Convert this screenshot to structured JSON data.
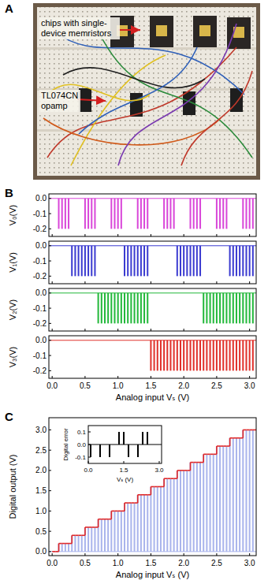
{
  "photo": {
    "title": "A",
    "labels": [
      "chips with single-device memristors",
      "TL074CN opamp"
    ]
  },
  "chart_data": [
    {
      "type": "bar",
      "title": "B",
      "ylabel": "V₀(V)",
      "color": "#d946d9",
      "x": [
        0,
        0.05,
        0.1,
        0.15,
        0.2,
        0.25,
        0.3,
        0.35,
        0.4,
        0.45,
        0.5,
        0.55,
        0.6,
        0.65,
        0.7,
        0.75,
        0.8,
        0.85,
        0.9,
        0.95,
        1,
        1.05,
        1.1,
        1.15,
        1.2,
        1.25,
        1.3,
        1.35,
        1.4,
        1.45,
        1.5,
        1.55,
        1.6,
        1.65,
        1.7,
        1.75,
        1.8,
        1.85,
        1.9,
        1.95,
        2,
        2.05,
        2.1,
        2.15,
        2.2,
        2.25,
        2.3,
        2.35,
        2.4,
        2.45,
        2.5,
        2.55,
        2.6,
        2.65,
        2.7,
        2.75,
        2.8,
        2.85,
        2.9,
        2.95,
        3,
        3.05
      ],
      "values": [
        0,
        0,
        -0.2,
        -0.2,
        -0.2,
        -0.2,
        0,
        0,
        0,
        0,
        -0.2,
        -0.2,
        -0.2,
        -0.2,
        0,
        0,
        0,
        0,
        -0.2,
        -0.2,
        -0.2,
        -0.2,
        0,
        0,
        0,
        0,
        -0.2,
        -0.2,
        -0.2,
        -0.2,
        0,
        0,
        0,
        0,
        -0.2,
        -0.2,
        -0.2,
        -0.2,
        0,
        0,
        0,
        0,
        -0.2,
        -0.2,
        -0.2,
        -0.2,
        0,
        0,
        0,
        0,
        -0.2,
        -0.2,
        -0.2,
        -0.2,
        0,
        0,
        0,
        0,
        -0.2,
        -0.2,
        -0.2,
        -0.2
      ],
      "xlim": [
        -0.05,
        3.1
      ],
      "ylim": [
        -0.25,
        0.03
      ],
      "xticks": [
        0,
        0.5,
        1,
        1.5,
        2,
        2.5,
        3
      ],
      "yticks": [
        {
          "value": 0,
          "label": "0.0"
        },
        -0.1,
        -0.2
      ],
      "tick_labels": "y"
    },
    {
      "type": "bar",
      "ylabel": "V₁(V)",
      "color": "#3a3ad0",
      "x": [
        0,
        0.05,
        0.1,
        0.15,
        0.2,
        0.25,
        0.3,
        0.35,
        0.4,
        0.45,
        0.5,
        0.55,
        0.6,
        0.65,
        0.7,
        0.75,
        0.8,
        0.85,
        0.9,
        0.95,
        1,
        1.05,
        1.1,
        1.15,
        1.2,
        1.25,
        1.3,
        1.35,
        1.4,
        1.45,
        1.5,
        1.55,
        1.6,
        1.65,
        1.7,
        1.75,
        1.8,
        1.85,
        1.9,
        1.95,
        2,
        2.05,
        2.1,
        2.15,
        2.2,
        2.25,
        2.3,
        2.35,
        2.4,
        2.45,
        2.5,
        2.55,
        2.6,
        2.65,
        2.7,
        2.75,
        2.8,
        2.85,
        2.9,
        2.95,
        3,
        3.05
      ],
      "values": [
        0,
        0,
        0,
        0,
        0,
        0,
        -0.2,
        -0.2,
        -0.2,
        -0.2,
        -0.2,
        -0.2,
        -0.2,
        -0.2,
        0,
        0,
        0,
        0,
        0,
        0,
        0,
        0,
        -0.2,
        -0.2,
        -0.2,
        -0.2,
        -0.2,
        -0.2,
        -0.2,
        -0.2,
        0,
        0,
        0,
        0,
        0,
        0,
        0,
        0,
        -0.2,
        -0.2,
        -0.2,
        -0.2,
        -0.2,
        -0.2,
        -0.2,
        -0.2,
        0,
        0,
        0,
        0,
        0,
        0,
        0,
        0,
        -0.2,
        -0.2,
        -0.2,
        -0.2,
        -0.2,
        -0.2,
        -0.2,
        -0.2
      ],
      "xlim": [
        -0.05,
        3.1
      ],
      "ylim": [
        -0.25,
        0.03
      ],
      "xticks": [
        0,
        0.5,
        1,
        1.5,
        2,
        2.5,
        3
      ],
      "yticks": [
        {
          "value": 0,
          "label": "0.0"
        },
        -0.1,
        -0.2
      ],
      "tick_labels": "y"
    },
    {
      "type": "bar",
      "ylabel": "V₂(V)",
      "color": "#22b83a",
      "x": [
        0,
        0.05,
        0.1,
        0.15,
        0.2,
        0.25,
        0.3,
        0.35,
        0.4,
        0.45,
        0.5,
        0.55,
        0.6,
        0.65,
        0.7,
        0.75,
        0.8,
        0.85,
        0.9,
        0.95,
        1,
        1.05,
        1.1,
        1.15,
        1.2,
        1.25,
        1.3,
        1.35,
        1.4,
        1.45,
        1.5,
        1.55,
        1.6,
        1.65,
        1.7,
        1.75,
        1.8,
        1.85,
        1.9,
        1.95,
        2,
        2.05,
        2.1,
        2.15,
        2.2,
        2.25,
        2.3,
        2.35,
        2.4,
        2.45,
        2.5,
        2.55,
        2.6,
        2.65,
        2.7,
        2.75,
        2.8,
        2.85,
        2.9,
        2.95,
        3,
        3.05
      ],
      "values": [
        0,
        0,
        0,
        0,
        0,
        0,
        0,
        0,
        0,
        0,
        0,
        0,
        0,
        0,
        -0.2,
        -0.2,
        -0.2,
        -0.2,
        -0.2,
        -0.2,
        -0.2,
        -0.2,
        -0.2,
        -0.2,
        -0.2,
        -0.2,
        -0.2,
        -0.2,
        -0.2,
        -0.2,
        0,
        0,
        0,
        0,
        0,
        0,
        0,
        0,
        0,
        0,
        0,
        0,
        0,
        0,
        0,
        0,
        -0.2,
        -0.2,
        -0.2,
        -0.2,
        -0.2,
        -0.2,
        -0.2,
        -0.2,
        -0.2,
        -0.2,
        -0.2,
        -0.2,
        -0.2,
        -0.2,
        -0.2,
        -0.2
      ],
      "xlim": [
        -0.05,
        3.1
      ],
      "ylim": [
        -0.25,
        0.03
      ],
      "xticks": [
        0,
        0.5,
        1,
        1.5,
        2,
        2.5,
        3
      ],
      "yticks": [
        {
          "value": 0,
          "label": "0.0"
        },
        -0.1,
        -0.2
      ],
      "tick_labels": "y"
    },
    {
      "type": "bar",
      "ylabel": "V₃(V)",
      "xlabel": "Analog input Vₛ (V)",
      "color": "#e0302a",
      "x": [
        0,
        0.05,
        0.1,
        0.15,
        0.2,
        0.25,
        0.3,
        0.35,
        0.4,
        0.45,
        0.5,
        0.55,
        0.6,
        0.65,
        0.7,
        0.75,
        0.8,
        0.85,
        0.9,
        0.95,
        1,
        1.05,
        1.1,
        1.15,
        1.2,
        1.25,
        1.3,
        1.35,
        1.4,
        1.45,
        1.5,
        1.55,
        1.6,
        1.65,
        1.7,
        1.75,
        1.8,
        1.85,
        1.9,
        1.95,
        2,
        2.05,
        2.1,
        2.15,
        2.2,
        2.25,
        2.3,
        2.35,
        2.4,
        2.45,
        2.5,
        2.55,
        2.6,
        2.65,
        2.7,
        2.75,
        2.8,
        2.85,
        2.9,
        2.95,
        3,
        3.05
      ],
      "values": [
        0,
        0,
        0,
        0,
        0,
        0,
        0,
        0,
        0,
        0,
        0,
        0,
        0,
        0,
        0,
        0,
        0,
        0,
        0,
        0,
        0,
        0,
        0,
        0,
        0,
        0,
        0,
        0,
        0,
        0,
        -0.2,
        -0.2,
        -0.2,
        -0.2,
        -0.2,
        -0.2,
        -0.2,
        -0.2,
        -0.2,
        -0.2,
        -0.2,
        -0.2,
        -0.2,
        -0.2,
        -0.2,
        -0.2,
        -0.2,
        -0.2,
        -0.2,
        -0.2,
        -0.2,
        -0.2,
        -0.2,
        -0.2,
        -0.2,
        -0.2,
        -0.2,
        -0.2,
        -0.2,
        -0.2,
        -0.2,
        -0.2
      ],
      "xlim": [
        -0.05,
        3.1
      ],
      "ylim": [
        -0.25,
        0.03
      ],
      "xticks": [
        {
          "value": 0,
          "label": "0.0"
        },
        0.5,
        {
          "value": 1,
          "label": "1.0"
        },
        1.5,
        {
          "value": 2,
          "label": "2.0"
        },
        2.5,
        {
          "value": 3,
          "label": "3.0"
        }
      ],
      "yticks": [
        {
          "value": 0,
          "label": "0.0"
        },
        -0.1,
        -0.2
      ]
    },
    {
      "type": "bar",
      "title": "C",
      "xlabel": "Analog input Vₛ (V)",
      "ylabel": "Digital output (V)",
      "x": [
        0,
        0.05,
        0.1,
        0.15,
        0.2,
        0.25,
        0.3,
        0.35,
        0.4,
        0.45,
        0.5,
        0.55,
        0.6,
        0.65,
        0.7,
        0.75,
        0.8,
        0.85,
        0.9,
        0.95,
        1,
        1.05,
        1.1,
        1.15,
        1.2,
        1.25,
        1.3,
        1.35,
        1.4,
        1.45,
        1.5,
        1.55,
        1.6,
        1.65,
        1.7,
        1.75,
        1.8,
        1.85,
        1.9,
        1.95,
        2,
        2.05,
        2.1,
        2.15,
        2.2,
        2.25,
        2.3,
        2.35,
        2.4,
        2.45,
        2.5,
        2.55,
        2.6,
        2.65,
        2.7,
        2.75,
        2.8,
        2.85,
        2.9,
        2.95,
        3,
        3.05
      ],
      "series": [
        {
          "type": "bar",
          "color": "#a9b4ec",
          "values": [
            0,
            0,
            0.2,
            0.2,
            0.2,
            0.2,
            0.4,
            0.4,
            0.4,
            0.4,
            0.6,
            0.6,
            0.6,
            0.6,
            0.8,
            0.8,
            0.8,
            0.8,
            1,
            1,
            1,
            1,
            1.2,
            1.2,
            1.2,
            1.2,
            1.4,
            1.4,
            1.4,
            1.4,
            1.6,
            1.6,
            1.6,
            1.6,
            1.8,
            1.8,
            1.8,
            1.8,
            2,
            2,
            2,
            2,
            2.2,
            2.2,
            2.2,
            2.2,
            2.4,
            2.4,
            2.4,
            2.4,
            2.6,
            2.6,
            2.6,
            2.6,
            2.8,
            2.8,
            2.8,
            2.8,
            3,
            3,
            3,
            3
          ]
        },
        {
          "type": "step",
          "color": "#e02828",
          "values": [
            0,
            0,
            0.2,
            0.2,
            0.2,
            0.2,
            0.4,
            0.4,
            0.4,
            0.4,
            0.6,
            0.6,
            0.6,
            0.6,
            0.8,
            0.8,
            0.8,
            0.8,
            1,
            1,
            1,
            1,
            1.2,
            1.2,
            1.2,
            1.2,
            1.4,
            1.4,
            1.4,
            1.4,
            1.6,
            1.6,
            1.6,
            1.6,
            1.8,
            1.8,
            1.8,
            1.8,
            2,
            2,
            2,
            2,
            2.2,
            2.2,
            2.2,
            2.2,
            2.4,
            2.4,
            2.4,
            2.4,
            2.6,
            2.6,
            2.6,
            2.6,
            2.8,
            2.8,
            2.8,
            2.8,
            3,
            3,
            3,
            3
          ]
        }
      ],
      "xlim": [
        -0.05,
        3.1
      ],
      "ylim": [
        -0.1,
        3.3
      ],
      "xticks": [
        {
          "value": 0,
          "label": "0.0"
        },
        0.5,
        {
          "value": 1,
          "label": "1.0"
        },
        1.5,
        {
          "value": 2,
          "label": "2.0"
        },
        2.5,
        {
          "value": 3,
          "label": "3.0"
        }
      ],
      "yticks": [
        {
          "value": 0,
          "label": "0.0"
        },
        0.5,
        {
          "value": 1,
          "label": "1.0"
        },
        1.5,
        {
          "value": 2,
          "label": "2.0"
        },
        2.5,
        {
          "value": 3,
          "label": "3.0"
        }
      ]
    },
    {
      "type": "bar",
      "xlabel": "Vₛ (V)",
      "ylabel": "Digital error",
      "color": "#000000",
      "x": [
        0.1,
        0.5,
        0.9,
        1.3,
        1.5,
        1.7,
        2.1,
        2.3,
        2.5
      ],
      "values": [
        -0.1,
        -0.1,
        -0.1,
        0.1,
        0.1,
        -0.1,
        -0.1,
        0.1,
        0.1
      ],
      "xlim": [
        0,
        3.1
      ],
      "ylim": [
        -0.15,
        0.15
      ],
      "xticks": [
        {
          "value": 0,
          "label": "0.0"
        },
        1.5,
        {
          "value": 3,
          "label": "3.0"
        }
      ],
      "yticks": [
        0.1,
        {
          "value": 0,
          "label": "0.0"
        },
        -0.1
      ]
    }
  ]
}
